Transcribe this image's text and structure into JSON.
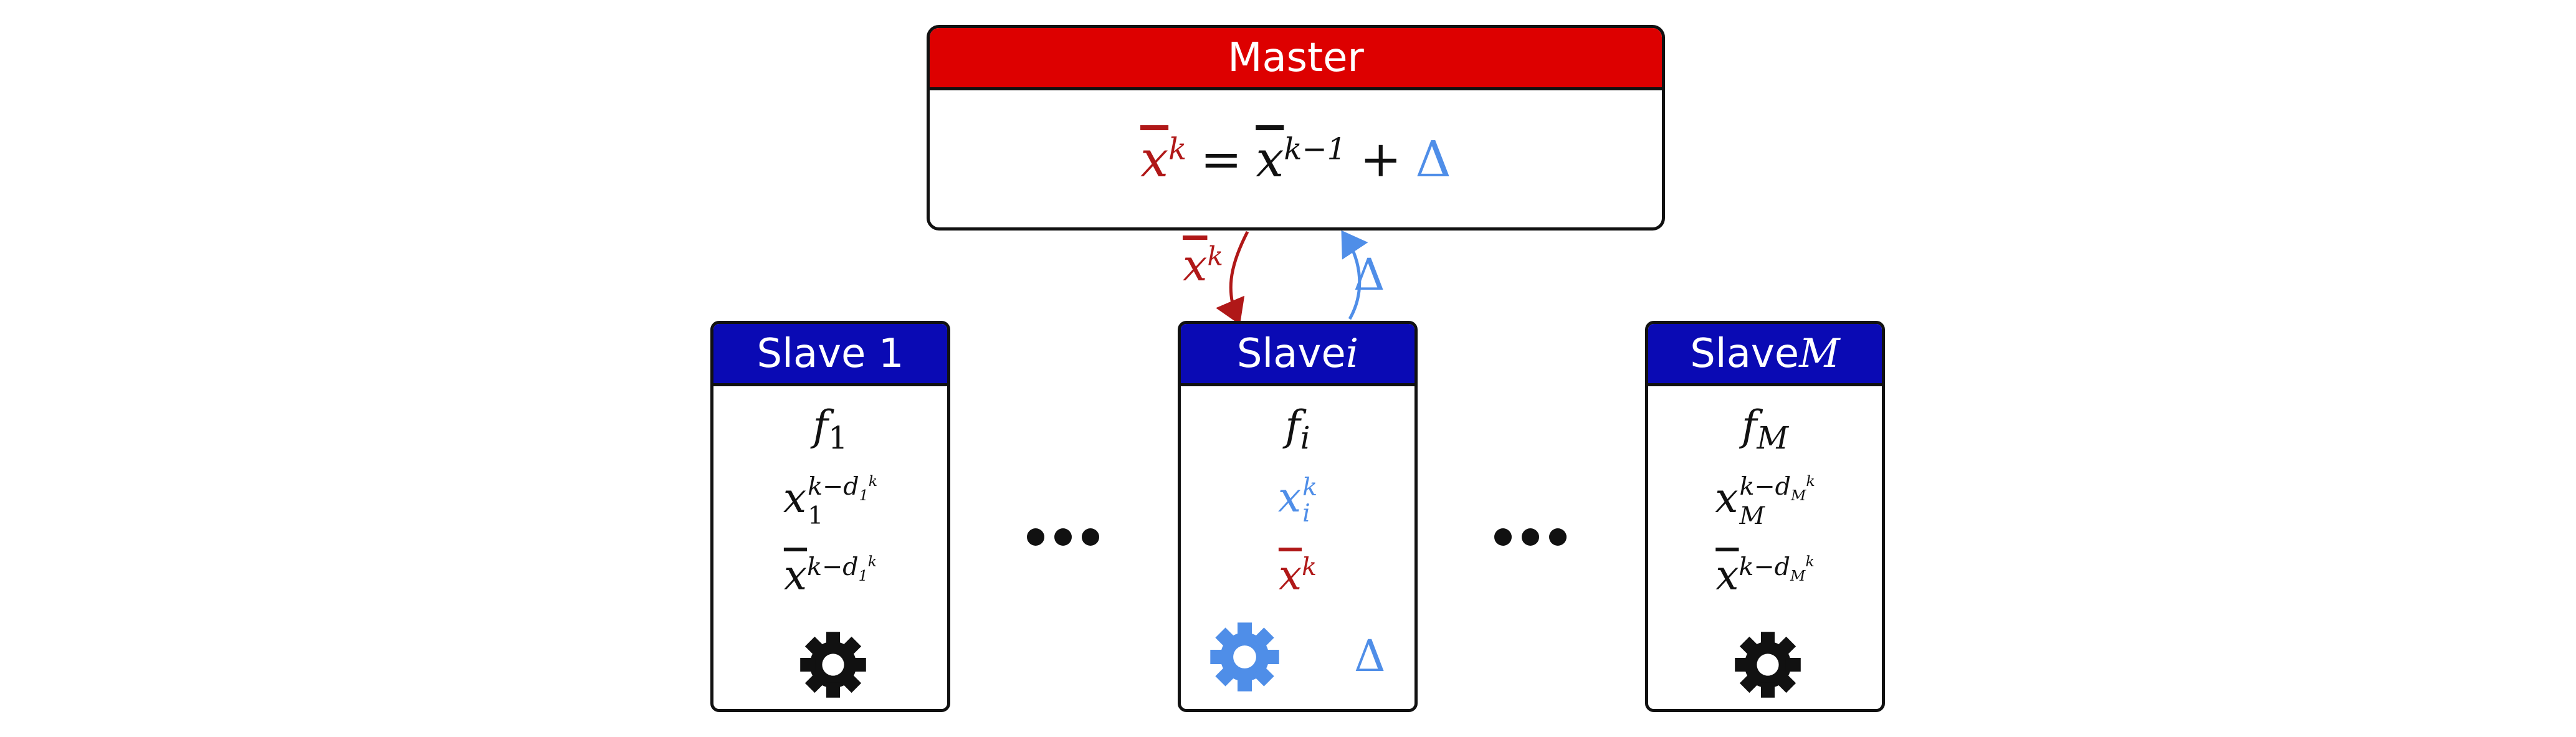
{
  "colors": {
    "master_header": "#dd0000",
    "slave_header": "#0a0ab4",
    "highlight_red": "#b01818",
    "highlight_blue": "#4f8ee8",
    "ink": "#111111"
  },
  "master": {
    "title": "Master",
    "equation": {
      "lhs_var": "x",
      "lhs_sup": "k",
      "equals": "=",
      "rhs_var": "x",
      "rhs_sup": "k−1",
      "plus": "+",
      "delta": "Δ"
    }
  },
  "edges": {
    "down_label_var": "x",
    "down_label_sup": "k",
    "up_label": "Δ"
  },
  "slaves": [
    {
      "title_text": "Slave 1",
      "title_var": "",
      "f_var": "f",
      "f_sub": "1",
      "x_var": "x",
      "x_sub": "1",
      "x_sup_base": "k−d",
      "x_sup_sub": "1",
      "x_sup_sup": "k",
      "xbar_var": "x",
      "xbar_sup_base": "k−d",
      "xbar_sup_sub": "1",
      "xbar_sup_sup": "k",
      "gear": "gear-icon"
    },
    {
      "title_text": "Slave ",
      "title_var": "i",
      "f_var": "f",
      "f_sub": "i",
      "x_var": "x",
      "x_sub": "i",
      "x_sup": "k",
      "xbar_var": "x",
      "xbar_sup": "k",
      "gear": "gear-icon",
      "output": "Δ"
    },
    {
      "title_text": "Slave ",
      "title_var": "M",
      "f_var": "f",
      "f_sub": "M",
      "x_var": "x",
      "x_sub": "M",
      "x_sup_base": "k−d",
      "x_sup_sub": "M",
      "x_sup_sup": "k",
      "xbar_var": "x",
      "xbar_sup_base": "k−d",
      "xbar_sup_sub": "M",
      "xbar_sup_sup": "k",
      "gear": "gear-icon"
    }
  ],
  "ellipses": [
    "…",
    "…"
  ]
}
